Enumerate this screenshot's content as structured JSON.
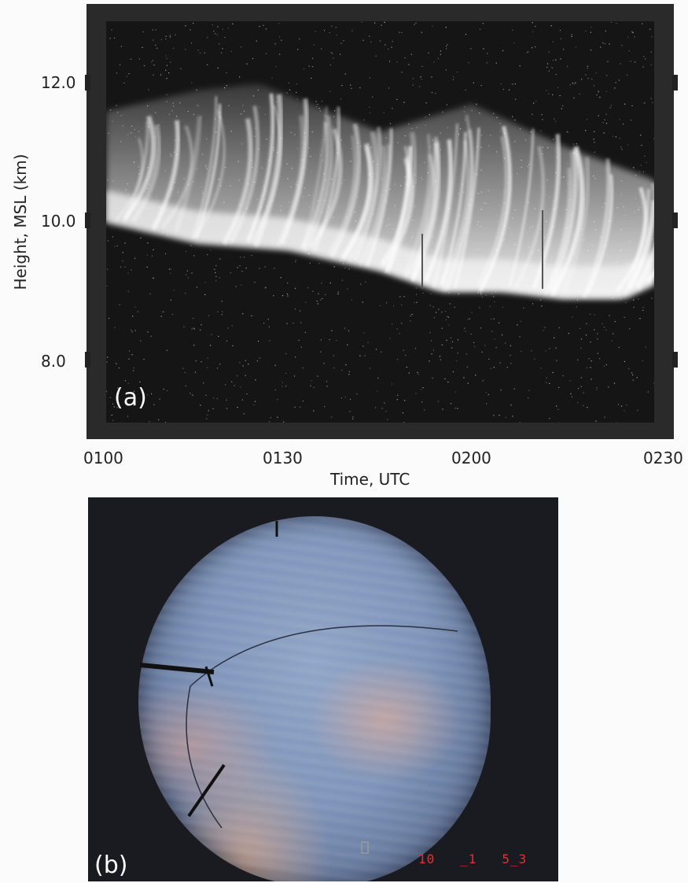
{
  "panel_a": {
    "label": "(a)",
    "y_axis_title": "Height, MSL (km)",
    "x_axis_title": "Time, UTC",
    "y_ticks": [
      "12.0",
      "10.0",
      "8.0"
    ],
    "x_ticks": [
      "0100",
      "0130",
      "0200",
      "0230"
    ]
  },
  "panel_b": {
    "label": "(b)",
    "timestamp": "10   _1   5_3"
  },
  "chart_data": {
    "type": "heatmap",
    "title": "",
    "xlabel": "Time, UTC",
    "ylabel": "Height, MSL (km)",
    "x_ticks": [
      "0100",
      "0130",
      "0200",
      "0230"
    ],
    "y_ticks": [
      8.0,
      10.0,
      12.0
    ],
    "ylim": [
      7.0,
      12.8
    ],
    "colormap": "grayscale",
    "cloud_base_km": [
      {
        "time": "0100",
        "height": 9.9
      },
      {
        "time": "0115",
        "height": 9.6
      },
      {
        "time": "0130",
        "height": 9.5
      },
      {
        "time": "0145",
        "height": 9.2
      },
      {
        "time": "0155",
        "height": 8.9
      },
      {
        "time": "0205",
        "height": 8.9
      },
      {
        "time": "0215",
        "height": 8.8
      },
      {
        "time": "0225",
        "height": 8.8
      },
      {
        "time": "0230",
        "height": 9.0
      }
    ],
    "cloud_top_km": [
      {
        "time": "0100",
        "height": 11.5
      },
      {
        "time": "0115",
        "height": 11.8
      },
      {
        "time": "0125",
        "height": 11.9
      },
      {
        "time": "0145",
        "height": 11.2
      },
      {
        "time": "0200",
        "height": 11.6
      },
      {
        "time": "0215",
        "height": 11.0
      },
      {
        "time": "0230",
        "height": 10.5
      }
    ]
  }
}
